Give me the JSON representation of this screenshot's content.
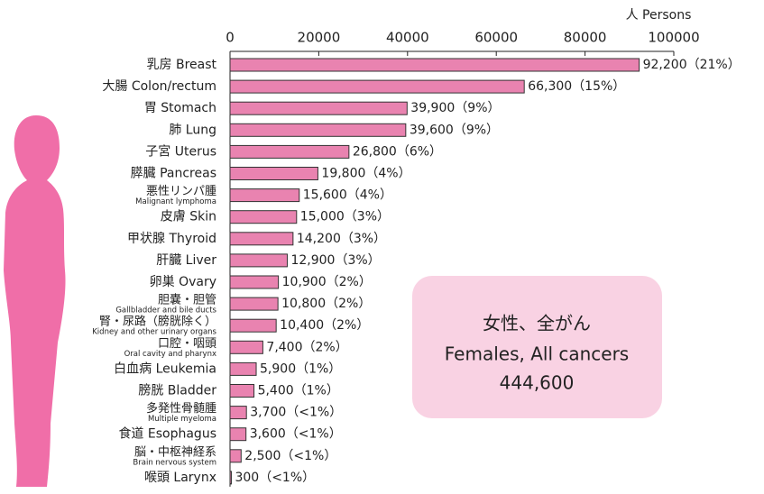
{
  "chart_data": {
    "type": "bar",
    "orientation": "horizontal",
    "axis_label": "人 Persons",
    "categories": [
      "乳房 Breast",
      "大腸 Colon/rectum",
      "胃 Stomach",
      "肺 Lung",
      "子宮 Uterus",
      "膵臓 Pancreas",
      "悪性リンパ腫",
      "皮膚 Skin",
      "甲状腺 Thyroid",
      "肝臓 Liver",
      "卵巣 Ovary",
      "胆嚢・胆管",
      "腎・尿路（膀胱除く）",
      "口腔・咽頭",
      "白血病 Leukemia",
      "膀胱 Bladder",
      "多発性骨髄腫",
      "食道 Esophagus",
      "脳・中枢神経系",
      "喉頭 Larynx"
    ],
    "category_notes": [
      null,
      null,
      null,
      null,
      null,
      null,
      "Malignant lymphoma",
      null,
      null,
      null,
      null,
      "Gallbladder and bile ducts",
      "Kidney and other urinary organs",
      "Oral cavity and pharynx",
      null,
      null,
      "Multiple myeloma",
      null,
      "Brain nervous system",
      null
    ],
    "values": [
      92200,
      66300,
      39900,
      39600,
      26800,
      19800,
      15600,
      15000,
      14200,
      12900,
      10900,
      10800,
      10400,
      7400,
      5900,
      5400,
      3700,
      3600,
      2500,
      300
    ],
    "value_labels": [
      "92,200（21%）",
      "66,300（15%）",
      "39,900（9%）",
      "39,600（9%）",
      "26,800（6%）",
      "19,800（4%）",
      "15,600（4%）",
      "15,000（3%）",
      "14,200（3%）",
      "12,900（3%）",
      "10,900（2%）",
      "10,800（2%）",
      "10,400（2%）",
      "7,400（2%）",
      "5,900（1%）",
      "5,400（1%）",
      "3,700（<1%）",
      "3,600（<1%）",
      "2,500（<1%）",
      "300（<1%）"
    ],
    "color": "#e983b0",
    "xlim": [
      0,
      100000
    ],
    "xticks": [
      0,
      20000,
      40000,
      60000,
      80000,
      100000
    ],
    "annotation": {
      "lines": [
        "女性、全がん",
        "Females, All cancers",
        "444,600"
      ]
    }
  }
}
